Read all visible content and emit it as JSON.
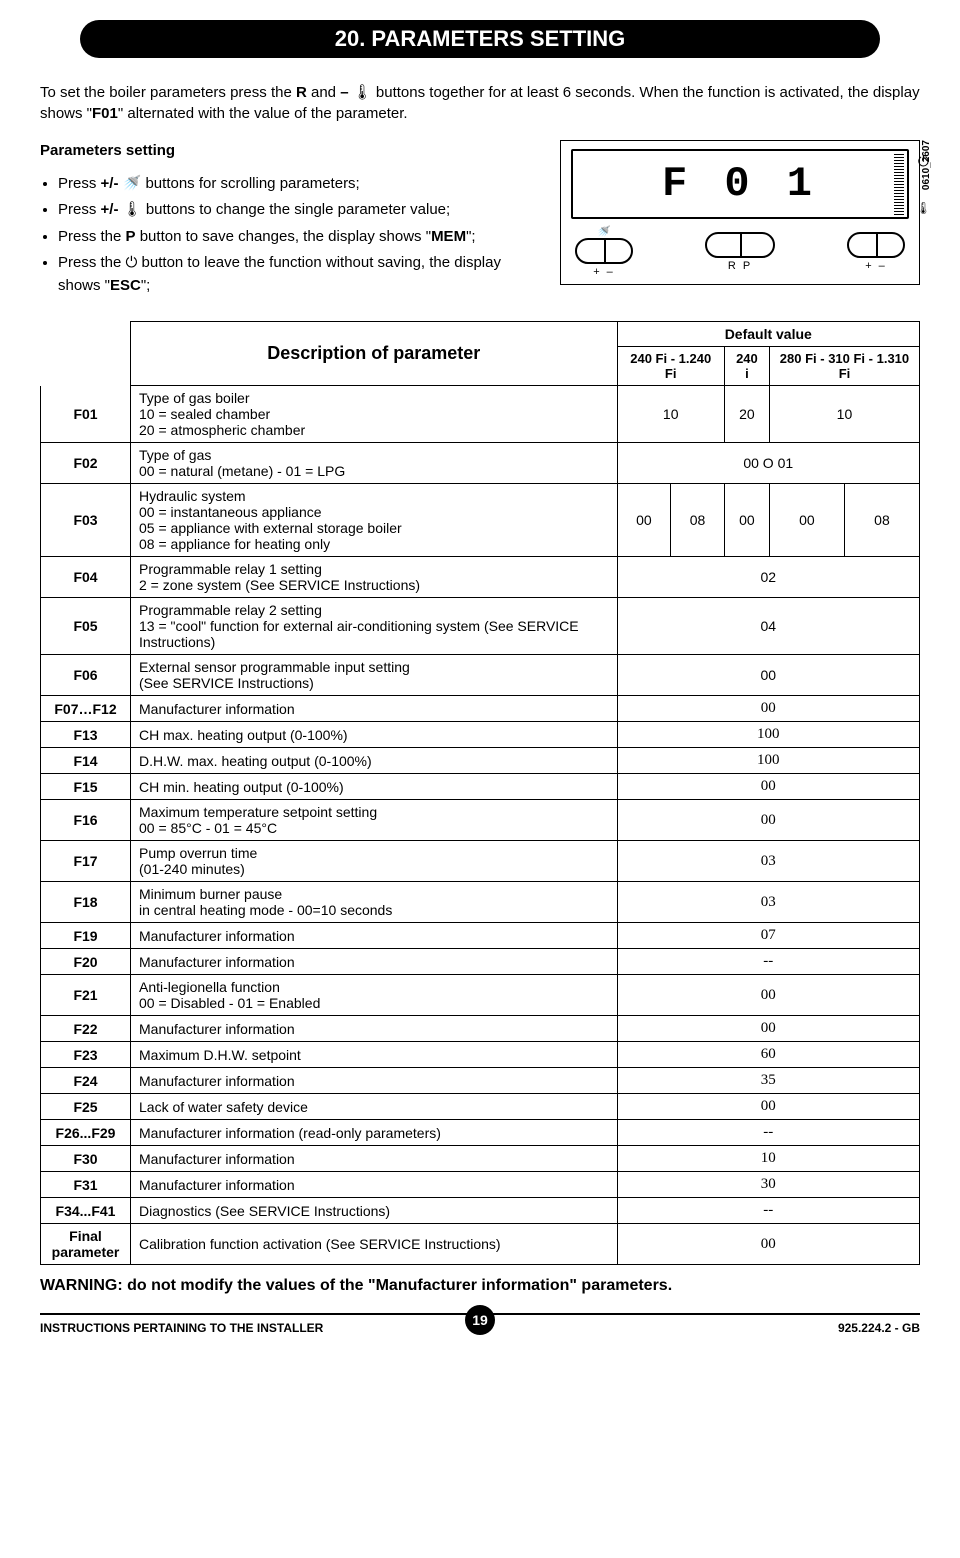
{
  "title": "20. PARAMETERS SETTING",
  "intro_html": "To set the boiler parameters press the <b>R</b> and <b>–</b> 🌡 buttons together for at least 6 seconds. When the function is activated, the display shows \"<b>F01</b>\" alternated with the value of the parameter.",
  "settings_heading": "Parameters setting",
  "bullets": [
    "Press <b>+/-</b> 🚿 buttons for scrolling parameters;",
    "Press <b>+/-</b> 🌡 buttons to change the single parameter value;",
    "Press the <b>P</b> button to save changes, the display shows \"<b>MEM</b>\";",
    "Press the ⏻ button to leave the function without saving, the display shows \"<b>ESC</b>\";"
  ],
  "display_text": "F 0 1",
  "display_code": "0610_2607",
  "btn_labels": {
    "left": "+  –",
    "mid": "R   P",
    "right": "+  –"
  },
  "table": {
    "desc_header": "Description of parameter",
    "default_header": "Default value",
    "col_headers": [
      "240 Fi - 1.240 Fi",
      "240 i",
      "280 Fi - 310 Fi - 1.310 Fi"
    ],
    "rows": [
      {
        "code": "F01",
        "desc": "Type of gas boiler\n10 = sealed chamber\n20 = atmospheric chamber",
        "vals": [
          "10",
          "20",
          "10"
        ],
        "serif": false
      },
      {
        "code": "F02",
        "desc": "Type of gas\n00 = natural (metane) - 01 = LPG",
        "vals_merged": "00 O 01",
        "serif": false
      },
      {
        "code": "F03",
        "desc": "Hydraulic system\n00 = instantaneous appliance\n05 = appliance with external storage boiler\n08 = appliance for heating only",
        "vals5": [
          "00",
          "08",
          "00",
          "00",
          "08"
        ],
        "serif": false
      },
      {
        "code": "F04",
        "desc": "Programmable relay 1 setting\n2 = zone system (See SERVICE Instructions)",
        "vals_merged": "02",
        "serif": false
      },
      {
        "code": "F05",
        "desc": "Programmable relay 2 setting\n13 = \"cool\" function for external air-conditioning system (See SERVICE Instructions)",
        "vals_merged": "04",
        "serif": false
      },
      {
        "code": "F06",
        "desc": "External sensor programmable input setting\n(See SERVICE Instructions)",
        "vals_merged": "00",
        "serif": false
      },
      {
        "code": "F07…F12",
        "desc": "Manufacturer information",
        "vals_merged": "00",
        "serif": true
      },
      {
        "code": "F13",
        "desc": "CH max. heating output  (0-100%)",
        "vals_merged": "100",
        "serif": true
      },
      {
        "code": "F14",
        "desc": "D.H.W. max. heating output  (0-100%)",
        "vals_merged": "100",
        "serif": true
      },
      {
        "code": "F15",
        "desc": "CH min. heating output  (0-100%)",
        "vals_merged": "00",
        "serif": true
      },
      {
        "code": "F16",
        "desc": "Maximum temperature setpoint setting\n00 = 85°C - 01 = 45°C",
        "vals_merged": "00",
        "serif": true
      },
      {
        "code": "F17",
        "desc": "Pump overrun time\n(01-240 minutes)",
        "vals_merged": "03",
        "serif": true
      },
      {
        "code": "F18",
        "desc": "Minimum burner pause\nin central heating mode - 00=10 seconds",
        "vals_merged": "03",
        "serif": true
      },
      {
        "code": "F19",
        "desc": "Manufacturer information",
        "vals_merged": "07",
        "serif": true
      },
      {
        "code": "F20",
        "desc": "Manufacturer information",
        "vals_merged": "--",
        "serif": true
      },
      {
        "code": "F21",
        "desc": "Anti-legionella function\n00 = Disabled - 01 = Enabled",
        "vals_merged": "00",
        "serif": true
      },
      {
        "code": "F22",
        "desc": "Manufacturer information",
        "vals_merged": "00",
        "serif": true
      },
      {
        "code": "F23",
        "desc": "Maximum D.H.W. setpoint",
        "vals_merged": "60",
        "serif": true
      },
      {
        "code": "F24",
        "desc": "Manufacturer information",
        "vals_merged": "35",
        "serif": true
      },
      {
        "code": "F25",
        "desc": "Lack of water safety device",
        "vals_merged": "00",
        "serif": true
      },
      {
        "code": "F26...F29",
        "desc": "Manufacturer information (read-only parameters)",
        "vals_merged": "--",
        "serif": true
      },
      {
        "code": "F30",
        "desc": "Manufacturer information",
        "vals_merged": "10",
        "serif": true
      },
      {
        "code": "F31",
        "desc": "Manufacturer information",
        "vals_merged": "30",
        "serif": true
      },
      {
        "code": "F34...F41",
        "desc": "Diagnostics (See SERVICE Instructions)",
        "vals_merged": "--",
        "serif": true
      },
      {
        "code": "Final parameter",
        "desc": "Calibration function activation (See SERVICE Instructions)",
        "vals_merged": "00",
        "serif": true
      }
    ]
  },
  "warning": "WARNING: do not modify the values of the \"Manufacturer information\" parameters.",
  "footer_left": "INSTRUCTIONS PERTAINING TO THE INSTALLER",
  "footer_right": "925.224.2 - GB",
  "page_number": "19"
}
